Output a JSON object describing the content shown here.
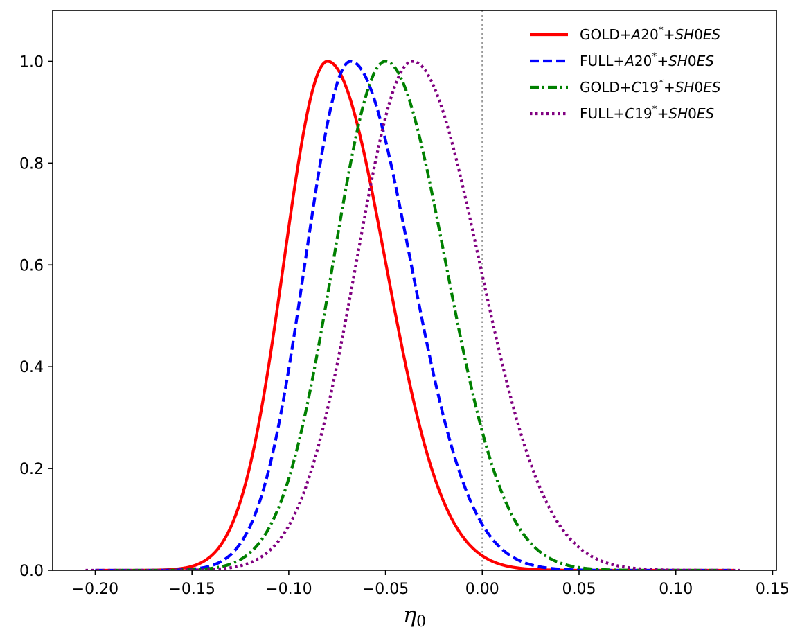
{
  "chart_data": {
    "type": "line",
    "title": "",
    "xlabel": "η",
    "xlabel_subscript": "0",
    "ylabel": "",
    "xlim": [
      -0.222,
      0.152
    ],
    "ylim": [
      0.0,
      1.1
    ],
    "xticks": [
      -0.2,
      -0.15,
      -0.1,
      -0.05,
      0.0,
      0.05,
      0.1,
      0.15
    ],
    "xtick_labels": [
      "−0.20",
      "−0.15",
      "−0.10",
      "−0.05",
      "0.00",
      "0.05",
      "0.10",
      "0.15"
    ],
    "yticks": [
      0.0,
      0.2,
      0.4,
      0.6,
      0.8,
      1.0
    ],
    "ytick_labels": [
      "0.0",
      "0.2",
      "0.4",
      "0.6",
      "0.8",
      "1.0"
    ],
    "grid": false,
    "legend_position": "top-right",
    "reference_line": {
      "x": 0.0,
      "style": "dotted",
      "color": "#999999"
    },
    "series": [
      {
        "label_parts": [
          "GOLD+",
          "A",
          "20",
          "*",
          "+",
          "SH",
          "0",
          "ES"
        ],
        "color": "#ff0000",
        "dash": "solid",
        "x_range": [
          -0.2,
          0.13
        ],
        "peak": -0.08,
        "sigma_left": 0.0225,
        "sigma_right": 0.03,
        "x": [
          -0.2,
          -0.16,
          -0.14,
          -0.12,
          -0.1,
          -0.08,
          -0.06,
          -0.04,
          -0.02,
          0.0,
          0.02,
          0.04,
          0.06,
          0.1,
          0.13
        ],
        "y": [
          0.0,
          0.01,
          0.08,
          0.35,
          0.72,
          1.0,
          0.8,
          0.42,
          0.14,
          0.03,
          0.004,
          0.0,
          0.0,
          0.0,
          0.0
        ]
      },
      {
        "label_parts": [
          "FULL+",
          "A",
          "20",
          "*",
          "+",
          "SH",
          "0",
          "ES"
        ],
        "color": "#0000ff",
        "dash": "dashed",
        "x_range": [
          -0.2,
          0.13
        ],
        "peak": -0.068,
        "sigma_left": 0.0235,
        "sigma_right": 0.031,
        "x": [
          -0.2,
          -0.16,
          -0.14,
          -0.12,
          -0.1,
          -0.068,
          -0.04,
          -0.02,
          0.0,
          0.02,
          0.04,
          0.06,
          0.1,
          0.13
        ],
        "y": [
          0.0,
          0.01,
          0.04,
          0.16,
          0.5,
          1.0,
          0.72,
          0.36,
          0.1,
          0.03,
          0.01,
          0.0,
          0.0,
          0.0
        ]
      },
      {
        "label_parts": [
          "GOLD+",
          "C",
          "19",
          "*",
          "+",
          "SH",
          "0",
          "ES"
        ],
        "color": "#008000",
        "dash": "dashdot",
        "x_range": [
          -0.19,
          0.128
        ],
        "peak": -0.05,
        "sigma_left": 0.027,
        "sigma_right": 0.031,
        "x": [
          -0.19,
          -0.15,
          -0.12,
          -0.1,
          -0.08,
          -0.05,
          -0.02,
          0.0,
          0.02,
          0.04,
          0.06,
          0.1,
          0.128
        ],
        "y": [
          0.0,
          0.01,
          0.12,
          0.4,
          0.72,
          1.0,
          0.72,
          0.39,
          0.17,
          0.06,
          0.02,
          0.0,
          0.0
        ]
      },
      {
        "label_parts": [
          "FULL+",
          "C",
          "19",
          "*",
          "+",
          "SH",
          "0",
          "ES"
        ],
        "color": "#800080",
        "dash": "dotted",
        "x_range": [
          -0.205,
          0.133
        ],
        "peak": -0.036,
        "sigma_left": 0.029,
        "sigma_right": 0.0345,
        "x": [
          -0.205,
          -0.15,
          -0.12,
          -0.1,
          -0.08,
          -0.036,
          0.0,
          0.02,
          0.04,
          0.06,
          0.08,
          0.1,
          0.133
        ],
        "y": [
          0.0,
          0.0,
          0.06,
          0.17,
          0.4,
          1.0,
          0.62,
          0.27,
          0.09,
          0.03,
          0.01,
          0.0,
          0.0
        ]
      }
    ]
  }
}
